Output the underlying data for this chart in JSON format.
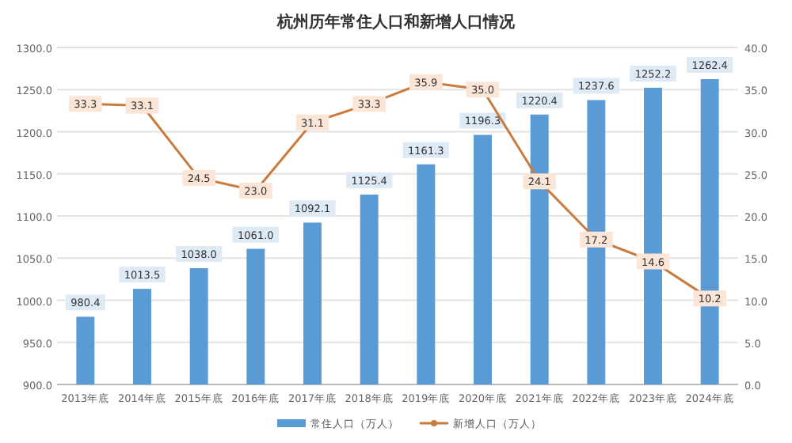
{
  "chart_data": {
    "type": "bar",
    "title": "杭州历年常住人口和新增人口情况",
    "categories": [
      "2013年底",
      "2014年底",
      "2015年底",
      "2016年底",
      "2017年底",
      "2018年底",
      "2019年底",
      "2020年底",
      "2021年底",
      "2022年底",
      "2023年底",
      "2024年底"
    ],
    "series": [
      {
        "name": "常住人口（万人）",
        "color": "#5b9bd5",
        "values": [
          980.4,
          1013.5,
          1038.0,
          1061.0,
          1092.1,
          1125.4,
          1161.3,
          1196.3,
          1220.4,
          1237.6,
          1252.2,
          1262.4
        ],
        "value_labels": [
          "980.4",
          "1013.5",
          "1038.0",
          "1061.0",
          "1092.1",
          "1125.4",
          "1161.3",
          "1196.3",
          "1220.4",
          "1237.6",
          "1252.2",
          "1262.4"
        ]
      },
      {
        "name": "新增人口（万人）",
        "type": "line",
        "axis": "y2",
        "color": "#c97b3e",
        "values": [
          33.3,
          33.1,
          24.5,
          23.0,
          31.1,
          33.3,
          35.9,
          35.0,
          24.1,
          17.2,
          14.6,
          10.2
        ],
        "value_labels": [
          "33.3",
          "33.1",
          "24.5",
          "23.0",
          "31.1",
          "33.3",
          "35.9",
          "35.0",
          "24.1",
          "17.2",
          "14.6",
          "10.2"
        ]
      }
    ],
    "ylim": [
      900,
      1300
    ],
    "yticks": [
      {
        "value": 900,
        "label": "900.0"
      },
      {
        "value": 950,
        "label": "950.0"
      },
      {
        "value": 1000,
        "label": "1000.0"
      },
      {
        "value": 1050,
        "label": "1050.0"
      },
      {
        "value": 1100,
        "label": "1100.0"
      },
      {
        "value": 1150,
        "label": "1150.0"
      },
      {
        "value": 1200,
        "label": "1200.0"
      },
      {
        "value": 1250,
        "label": "1250.0"
      },
      {
        "value": 1300,
        "label": "1300.0"
      }
    ],
    "y2lim": [
      0,
      40
    ],
    "y2ticks": [
      {
        "value": 0,
        "label": "0.0"
      },
      {
        "value": 5,
        "label": "5.0"
      },
      {
        "value": 10,
        "label": "10.0"
      },
      {
        "value": 15,
        "label": "15.0"
      },
      {
        "value": 20,
        "label": "20.0"
      },
      {
        "value": 25,
        "label": "25.0"
      },
      {
        "value": 30,
        "label": "30.0"
      },
      {
        "value": 35,
        "label": "35.0"
      },
      {
        "value": 40,
        "label": "40.0"
      }
    ],
    "grid": "y",
    "legend": "bottom",
    "marker": "circle"
  }
}
